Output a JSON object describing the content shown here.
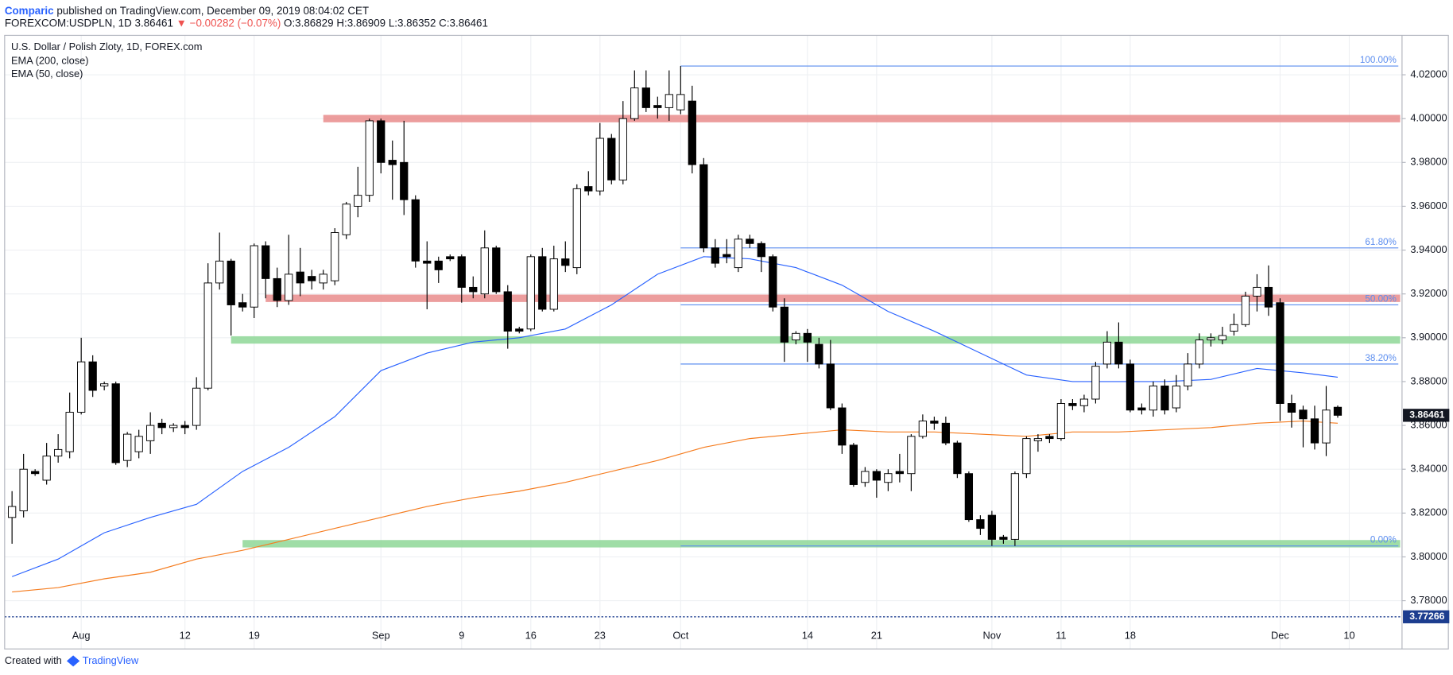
{
  "header": {
    "author": "Comparic",
    "published": " published on TradingView.com, December 09, 2019 08:04:02 CET",
    "symbol": "FOREXCOM:USDPLN, 1D",
    "last": "3.86461",
    "change": "▼ −0.00282 (−0.07%)",
    "open": "O:3.86829",
    "high": "H:3.86909",
    "low": "L:3.86352",
    "close": "C:3.86461"
  },
  "footer": {
    "created": "Created with",
    "brand": "TradingView"
  },
  "chart_data": {
    "type": "candlestick",
    "title": "U.S. Dollar / Polish Zloty, 1D, FOREX.com",
    "categories": [
      null,
      null,
      null,
      null,
      null,
      null,
      "Aug",
      null,
      null,
      null,
      null,
      null,
      null,
      null,
      null,
      "12",
      null,
      null,
      null,
      null,
      null,
      "19",
      null,
      null,
      null,
      null,
      null,
      null,
      null,
      null,
      null,
      null,
      "Sep",
      null,
      null,
      null,
      null,
      null,
      null,
      "9",
      null,
      null,
      null,
      null,
      null,
      "16",
      null,
      null,
      null,
      null,
      null,
      "23",
      null,
      null,
      null,
      null,
      null,
      null,
      "Oct",
      null,
      null,
      null,
      null,
      null,
      null,
      null,
      null,
      null,
      null,
      "14",
      null,
      null,
      null,
      null,
      null,
      "21",
      null,
      null,
      null,
      null,
      null,
      null,
      null,
      null,
      null,
      "Nov",
      null,
      null,
      null,
      null,
      null,
      "11",
      null,
      null,
      null,
      null,
      null,
      "18",
      null,
      null,
      null,
      null,
      null,
      null,
      null,
      null,
      null,
      null,
      null,
      null,
      "Dec",
      null,
      null,
      null,
      null,
      null,
      "10"
    ],
    "open": [
      3.818,
      3.821,
      3.839,
      3.835,
      3.846,
      3.848,
      3.866,
      3.889,
      3.878,
      3.879,
      3.844,
      3.848,
      3.853,
      3.861,
      3.859,
      3.86,
      3.86,
      3.877,
      3.925,
      3.935,
      3.916,
      3.914,
      3.942,
      3.927,
      3.917,
      3.93,
      3.928,
      3.925,
      3.926,
      3.947,
      3.96,
      3.965,
      3.999,
      3.981,
      3.98,
      3.963,
      3.935,
      3.935,
      3.937,
      3.937,
      3.923,
      3.92,
      3.941,
      3.921,
      3.904,
      3.904,
      3.937,
      3.913,
      3.936,
      3.932,
      3.969,
      3.967,
      3.991,
      3.972,
      4.0,
      4.014,
      4.006,
      4.005,
      4.004,
      4.008,
      3.979,
      3.941,
      3.938,
      3.932,
      3.945,
      3.943,
      3.937,
      3.914,
      3.899,
      3.902,
      3.897,
      3.888,
      3.868,
      3.851,
      3.834,
      3.839,
      3.834,
      3.839,
      3.838,
      3.855,
      3.862,
      3.861,
      3.852,
      3.838,
      3.817,
      3.819,
      3.809,
      3.808,
      3.838,
      3.853,
      3.855,
      3.854,
      3.87,
      3.869,
      3.872,
      3.888,
      3.898,
      3.888,
      3.868,
      3.867,
      3.878,
      3.868,
      3.878,
      3.888,
      3.899,
      3.899,
      3.903,
      3.906,
      3.919,
      3.923,
      3.916,
      3.87,
      3.867,
      3.863,
      3.852,
      3.86829,
      null
    ],
    "high": [
      3.83,
      3.847,
      3.84,
      3.852,
      3.856,
      3.875,
      3.9,
      3.892,
      3.88,
      3.88,
      3.857,
      3.858,
      3.866,
      3.863,
      3.861,
      3.862,
      3.882,
      3.934,
      3.948,
      3.936,
      3.92,
      3.943,
      3.944,
      3.932,
      3.947,
      3.941,
      3.931,
      3.931,
      3.95,
      3.962,
      3.978,
      4.0,
      4.0,
      3.99,
      3.999,
      3.965,
      3.944,
      3.937,
      3.938,
      3.938,
      3.928,
      3.949,
      3.942,
      3.924,
      3.905,
      3.938,
      3.941,
      3.942,
      3.944,
      3.97,
      3.976,
      3.998,
      3.993,
      4.008,
      4.022,
      4.022,
      4.01,
      4.022,
      4.024,
      4.015,
      3.982,
      3.945,
      3.945,
      3.947,
      3.947,
      3.944,
      3.938,
      3.918,
      3.903,
      3.904,
      3.9,
      3.899,
      3.87,
      3.852,
      3.841,
      3.84,
      3.84,
      3.847,
      3.856,
      3.865,
      3.864,
      3.864,
      3.853,
      3.839,
      3.819,
      3.821,
      3.81,
      3.839,
      3.855,
      3.856,
      3.856,
      3.872,
      3.872,
      3.874,
      3.889,
      3.903,
      3.907,
      3.89,
      3.87,
      3.88,
      3.881,
      3.883,
      3.893,
      3.902,
      3.902,
      3.905,
      3.911,
      3.921,
      3.929,
      3.933,
      3.918,
      3.874,
      3.869,
      3.869,
      3.878,
      3.86909,
      null
    ],
    "low": [
      3.806,
      3.818,
      3.837,
      3.833,
      3.843,
      3.845,
      3.865,
      3.873,
      3.876,
      3.842,
      3.841,
      3.845,
      3.847,
      3.856,
      3.857,
      3.856,
      3.858,
      3.876,
      3.922,
      3.901,
      3.912,
      3.909,
      3.918,
      3.914,
      3.915,
      3.919,
      3.922,
      3.922,
      3.924,
      3.945,
      3.955,
      3.962,
      3.975,
      3.963,
      3.956,
      3.932,
      3.913,
      3.925,
      3.935,
      3.916,
      3.918,
      3.918,
      3.92,
      3.895,
      3.902,
      3.903,
      3.912,
      3.912,
      3.93,
      3.929,
      3.965,
      3.965,
      3.97,
      3.97,
      3.999,
      4.003,
      4.0,
      3.999,
      4.002,
      3.975,
      3.939,
      3.932,
      3.934,
      3.93,
      3.941,
      3.93,
      3.912,
      3.889,
      3.897,
      3.889,
      3.886,
      3.867,
      3.847,
      3.832,
      3.832,
      3.827,
      3.83,
      3.834,
      3.83,
      3.854,
      3.858,
      3.851,
      3.836,
      3.816,
      3.81,
      3.805,
      3.806,
      3.805,
      3.836,
      3.848,
      3.852,
      3.853,
      3.867,
      3.866,
      3.87,
      3.886,
      3.886,
      3.866,
      3.865,
      3.864,
      3.865,
      3.866,
      3.876,
      3.886,
      3.896,
      3.897,
      3.901,
      3.905,
      3.912,
      3.91,
      3.862,
      3.859,
      3.85,
      3.849,
      3.846,
      3.86352,
      null
    ],
    "close": [
      3.823,
      3.84,
      3.838,
      3.846,
      3.849,
      3.866,
      3.889,
      3.876,
      3.879,
      3.843,
      3.856,
      3.855,
      3.86,
      3.859,
      3.86,
      3.859,
      3.877,
      3.925,
      3.935,
      3.915,
      3.914,
      3.942,
      3.927,
      3.917,
      3.929,
      3.925,
      3.926,
      3.929,
      3.948,
      3.961,
      3.965,
      3.999,
      3.98,
      3.979,
      3.963,
      3.935,
      3.934,
      3.931,
      3.936,
      3.923,
      3.921,
      3.941,
      3.921,
      3.903,
      3.903,
      3.937,
      3.913,
      3.936,
      3.933,
      3.968,
      3.967,
      3.991,
      3.972,
      4.0,
      4.014,
      4.005,
      4.005,
      4.011,
      4.011,
      3.979,
      3.941,
      3.934,
      3.937,
      3.945,
      3.943,
      3.937,
      3.914,
      3.898,
      3.902,
      3.898,
      3.888,
      3.868,
      3.851,
      3.833,
      3.839,
      3.835,
      3.838,
      3.838,
      3.855,
      3.862,
      3.861,
      3.852,
      3.838,
      3.817,
      3.813,
      3.808,
      3.808,
      3.838,
      3.854,
      3.854,
      3.854,
      3.87,
      3.869,
      3.872,
      3.887,
      3.898,
      3.888,
      3.867,
      3.867,
      3.878,
      3.867,
      3.878,
      3.888,
      3.899,
      3.9,
      3.901,
      3.906,
      3.919,
      3.923,
      3.914,
      3.87,
      3.866,
      3.863,
      3.852,
      3.867,
      3.86461,
      null
    ],
    "series": [
      {
        "name": "EMA (200, close)",
        "color": "#f57c1f",
        "x": [
          0,
          4,
          8,
          12,
          16,
          20,
          24,
          28,
          32,
          36,
          40,
          44,
          48,
          52,
          56,
          60,
          64,
          68,
          72,
          76,
          80,
          84,
          88,
          92,
          96,
          100,
          104,
          108,
          112,
          115
        ],
        "values": [
          3.784,
          3.786,
          3.79,
          3.793,
          3.799,
          3.803,
          3.808,
          3.813,
          3.818,
          3.823,
          3.827,
          3.83,
          3.834,
          3.839,
          3.844,
          3.85,
          3.854,
          3.856,
          3.858,
          3.857,
          3.857,
          3.856,
          3.855,
          3.857,
          3.857,
          3.858,
          3.859,
          3.861,
          3.862,
          3.861
        ]
      },
      {
        "name": "EMA (50, close)",
        "color": "#2962ff",
        "x": [
          0,
          4,
          8,
          12,
          16,
          20,
          24,
          28,
          32,
          36,
          40,
          44,
          48,
          52,
          56,
          60,
          64,
          68,
          72,
          76,
          80,
          84,
          88,
          92,
          96,
          100,
          104,
          108,
          112,
          115
        ],
        "values": [
          3.791,
          3.799,
          3.811,
          3.818,
          3.824,
          3.839,
          3.85,
          3.864,
          3.885,
          3.893,
          3.898,
          3.9,
          3.904,
          3.915,
          3.929,
          3.937,
          3.936,
          3.932,
          3.924,
          3.912,
          3.903,
          3.893,
          3.883,
          3.88,
          3.88,
          3.88,
          3.881,
          3.886,
          3.884,
          3.882
        ]
      }
    ],
    "zones": [
      {
        "value": 4.0,
        "start": 27,
        "color": "#e98c8c"
      },
      {
        "value": 3.918,
        "start": 22,
        "color": "#e98c8c"
      },
      {
        "value": 3.899,
        "start": 19,
        "color": "#8ed796"
      },
      {
        "value": 3.806,
        "start": 20,
        "color": "#8ed796"
      }
    ],
    "fib_start": 58,
    "fib_color": "#5b8def",
    "fib_levels": [
      {
        "value": 4.024,
        "label": "100.00%"
      },
      {
        "value": 3.941,
        "label": "61.80%"
      },
      {
        "value": 3.915,
        "label": "50.00%"
      },
      {
        "value": 3.888,
        "label": "38.20%"
      },
      {
        "value": 3.805,
        "label": "0.00%"
      }
    ],
    "price_lines": [
      {
        "value": 3.86461,
        "color": "#131722",
        "dashed": false
      },
      {
        "value": 3.77266,
        "color": "#1c3d8f",
        "dashed": true
      }
    ],
    "ylim": [
      3.758,
      4.038
    ],
    "yticks": [
      {
        "value": 4.02,
        "label": "4.02000"
      },
      {
        "value": 4.0,
        "label": "4.00000"
      },
      {
        "value": 3.98,
        "label": "3.98000"
      },
      {
        "value": 3.96,
        "label": "3.96000"
      },
      {
        "value": 3.94,
        "label": "3.94000"
      },
      {
        "value": 3.92,
        "label": "3.92000"
      },
      {
        "value": 3.9,
        "label": "3.90000"
      },
      {
        "value": 3.88,
        "label": "3.88000"
      },
      {
        "value": 3.86,
        "label": "3.86000"
      },
      {
        "value": 3.84,
        "label": "3.84000"
      },
      {
        "value": 3.82,
        "label": "3.82000"
      },
      {
        "value": 3.8,
        "label": "3.80000"
      },
      {
        "value": 3.78,
        "label": "3.78000"
      }
    ],
    "grid": true
  }
}
